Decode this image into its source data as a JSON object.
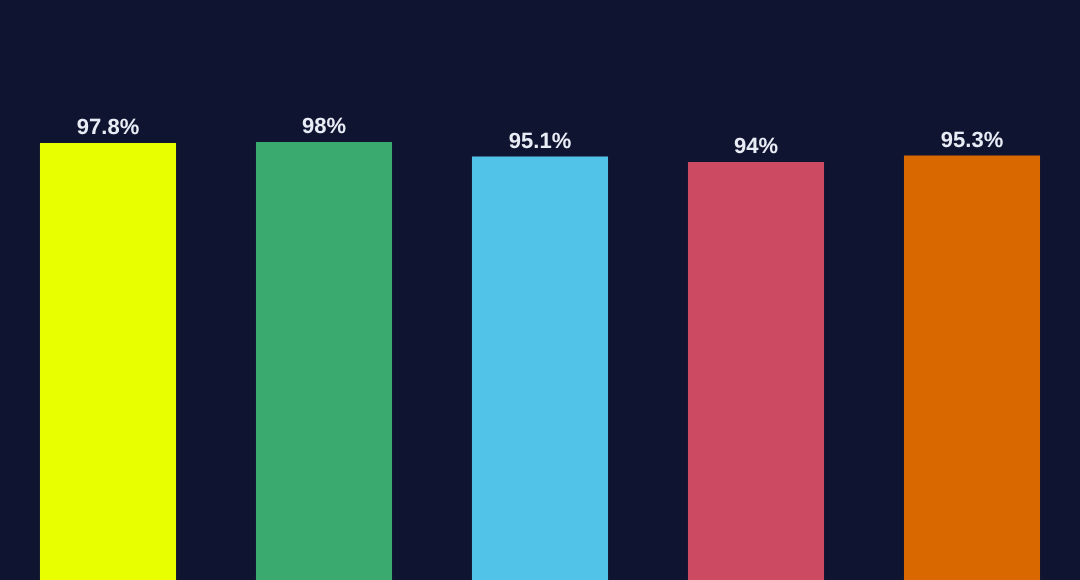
{
  "chart_data": {
    "type": "bar",
    "categories": [
      null,
      null,
      null,
      null,
      null
    ],
    "values": [
      97.8,
      98,
      95.1,
      94,
      95.3
    ],
    "colors": [
      "#e8ff00",
      "#3aaa6e",
      "#52c3e8",
      "#cc4b62",
      "#d96800"
    ],
    "value_labels": [
      "97.8%",
      "98%",
      "95.1%",
      "94%",
      "95.3%"
    ]
  }
}
